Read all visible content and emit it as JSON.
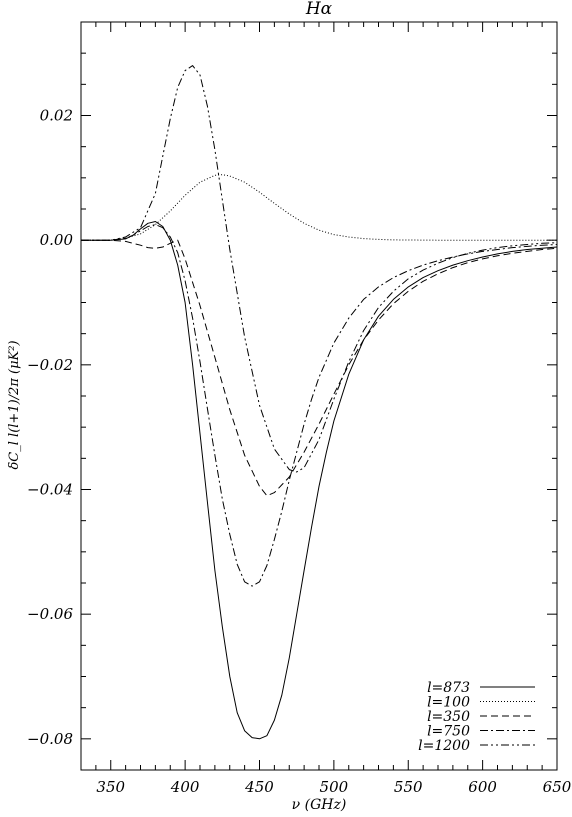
{
  "chart_data": {
    "type": "line",
    "title": "Hα",
    "xlabel": "ν (GHz)",
    "ylabel": "δC_l l(l+1)/2π (μK²)",
    "xlim": [
      330,
      650
    ],
    "ylim": [
      -0.085,
      0.035
    ],
    "x_ticks": [
      350,
      400,
      450,
      500,
      550,
      600,
      650
    ],
    "x_tick_labels": [
      "350",
      "400",
      "450",
      "500",
      "550",
      "600",
      "650"
    ],
    "y_ticks": [
      -0.08,
      -0.06,
      -0.04,
      -0.02,
      0.0,
      0.02
    ],
    "y_tick_labels": [
      "−0.08",
      "−0.06",
      "−0.04",
      "−0.02",
      "0.00",
      "0.02"
    ],
    "grid": false,
    "legend_position": "bottom-right",
    "series": [
      {
        "name": "l=873",
        "dash": "solid",
        "x": [
          330,
          350,
          360,
          365,
          370,
          375,
          380,
          385,
          390,
          395,
          400,
          405,
          410,
          415,
          420,
          425,
          430,
          435,
          440,
          445,
          450,
          455,
          460,
          465,
          470,
          475,
          480,
          485,
          490,
          495,
          500,
          510,
          520,
          530,
          540,
          550,
          560,
          570,
          580,
          590,
          600,
          610,
          620,
          630,
          640,
          650
        ],
        "y": [
          0,
          0,
          0.0002,
          0.0008,
          0.0018,
          0.0027,
          0.003,
          0.0022,
          0,
          -0.004,
          -0.01,
          -0.02,
          -0.031,
          -0.042,
          -0.053,
          -0.062,
          -0.07,
          -0.0758,
          -0.0787,
          -0.0798,
          -0.08,
          -0.0795,
          -0.077,
          -0.073,
          -0.067,
          -0.06,
          -0.053,
          -0.046,
          -0.0395,
          -0.034,
          -0.029,
          -0.0215,
          -0.016,
          -0.0122,
          -0.0095,
          -0.0075,
          -0.006,
          -0.0049,
          -0.004,
          -0.0033,
          -0.0027,
          -0.0022,
          -0.0018,
          -0.0015,
          -0.0013,
          -0.0011
        ]
      },
      {
        "name": "l=100",
        "dash": "dotted",
        "x": [
          330,
          350,
          360,
          370,
          380,
          390,
          400,
          410,
          420,
          425,
          430,
          440,
          450,
          460,
          470,
          480,
          490,
          500,
          510,
          520,
          530,
          540,
          550,
          560,
          570,
          580,
          590,
          600,
          620,
          650
        ],
        "y": [
          0,
          0,
          0.0003,
          0.001,
          0.0025,
          0.0047,
          0.0072,
          0.0093,
          0.0104,
          0.0105,
          0.0103,
          0.0093,
          0.0077,
          0.0059,
          0.0042,
          0.0027,
          0.0016,
          0.0009,
          0.0005,
          0.00025,
          0.00012,
          5e-05,
          2e-05,
          1e-05,
          0,
          0,
          0,
          0,
          0,
          0
        ]
      },
      {
        "name": "l=350",
        "dash": "dashed",
        "x": [
          330,
          350,
          360,
          370,
          375,
          380,
          385,
          390,
          395,
          400,
          410,
          420,
          430,
          440,
          450,
          455,
          460,
          470,
          480,
          490,
          500,
          510,
          520,
          530,
          540,
          550,
          560,
          570,
          580,
          590,
          600,
          610,
          620,
          630,
          640,
          650
        ],
        "y": [
          0,
          0,
          -0.0002,
          -0.0008,
          -0.0012,
          -0.0013,
          -0.0011,
          -0.0005,
          0,
          -0.003,
          -0.0105,
          -0.0188,
          -0.0272,
          -0.0345,
          -0.0395,
          -0.041,
          -0.0405,
          -0.038,
          -0.034,
          -0.0295,
          -0.0247,
          -0.02,
          -0.016,
          -0.0128,
          -0.0102,
          -0.0082,
          -0.0066,
          -0.0054,
          -0.0044,
          -0.0036,
          -0.003,
          -0.0025,
          -0.0021,
          -0.0018,
          -0.0015,
          -0.0013
        ]
      },
      {
        "name": "l=750",
        "dash": "dashdot",
        "x": [
          330,
          350,
          360,
          365,
          370,
          375,
          380,
          385,
          390,
          395,
          400,
          405,
          410,
          415,
          420,
          425,
          430,
          435,
          440,
          445,
          450,
          455,
          460,
          465,
          470,
          475,
          480,
          485,
          490,
          500,
          510,
          520,
          530,
          540,
          550,
          560,
          570,
          580,
          590,
          600,
          610,
          620,
          630,
          640,
          650
        ],
        "y": [
          0,
          0,
          0.0003,
          0.0008,
          0.0015,
          0.0022,
          0.0025,
          0.002,
          0.0005,
          -0.002,
          -0.0065,
          -0.0125,
          -0.0195,
          -0.027,
          -0.0345,
          -0.0415,
          -0.0472,
          -0.052,
          -0.0548,
          -0.0555,
          -0.0548,
          -0.0522,
          -0.048,
          -0.0435,
          -0.0385,
          -0.034,
          -0.0295,
          -0.0255,
          -0.022,
          -0.0165,
          -0.0125,
          -0.0095,
          -0.0075,
          -0.006,
          -0.0049,
          -0.004,
          -0.0033,
          -0.0027,
          -0.0022,
          -0.0018,
          -0.0015,
          -0.0012,
          -0.001,
          -0.0008,
          -0.0007
        ]
      },
      {
        "name": "l=1200",
        "dash": "dashdotdot",
        "x": [
          330,
          350,
          360,
          370,
          380,
          385,
          390,
          395,
          400,
          405,
          410,
          415,
          420,
          425,
          430,
          440,
          450,
          460,
          470,
          475,
          480,
          490,
          500,
          510,
          520,
          530,
          540,
          550,
          560,
          570,
          580,
          590,
          600,
          610,
          620,
          630,
          640,
          650
        ],
        "y": [
          0,
          0,
          0.0005,
          0.002,
          0.0075,
          0.0135,
          0.0195,
          0.0245,
          0.0272,
          0.028,
          0.0265,
          0.0215,
          0.0145,
          0.0065,
          -0.0015,
          -0.0155,
          -0.0265,
          -0.0335,
          -0.0368,
          -0.0372,
          -0.0365,
          -0.032,
          -0.0255,
          -0.0195,
          -0.0145,
          -0.0108,
          -0.0082,
          -0.0062,
          -0.0048,
          -0.0037,
          -0.0028,
          -0.0021,
          -0.0016,
          -0.0012,
          -0.0009,
          -0.0007,
          -0.0005,
          -0.0004
        ]
      }
    ],
    "legend": [
      {
        "label": "l=873",
        "dash": "solid"
      },
      {
        "label": "l=100",
        "dash": "dotted"
      },
      {
        "label": "l=350",
        "dash": "dashed"
      },
      {
        "label": "l=750",
        "dash": "dashdot"
      },
      {
        "label": "l=1200",
        "dash": "dashdotdot"
      }
    ]
  }
}
